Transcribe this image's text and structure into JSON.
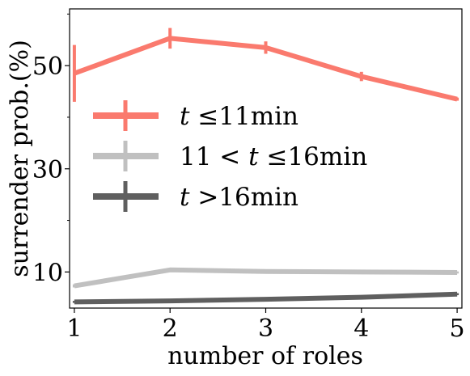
{
  "chart_data": {
    "type": "line",
    "xlabel": "number of roles",
    "ylabel": "surrender prob.(%)",
    "x": [
      1,
      2,
      3,
      4,
      5
    ],
    "x_tick_labels": [
      "1",
      "2",
      "3",
      "4",
      "5"
    ],
    "y_tick_values": [
      10,
      30,
      50
    ],
    "y_tick_labels": [
      "10",
      "30",
      "50"
    ],
    "xlim": [
      0.95,
      5.05
    ],
    "ylim": [
      3,
      61
    ],
    "grid": false,
    "legend_position": "center-left",
    "series": [
      {
        "name": "t ≤11min",
        "legend_parts": [
          "t",
          " ≤11min"
        ],
        "color": "#fa7a6e",
        "values": [
          48.5,
          55.3,
          53.5,
          47.9,
          43.5
        ],
        "error": [
          5.5,
          2.0,
          1.2,
          0.9,
          0.3
        ]
      },
      {
        "name": "11 < t ≤16min",
        "legend_parts": [
          "11 < ",
          "t",
          " ≤16min"
        ],
        "color": "#c0c0c0",
        "values": [
          7.3,
          10.4,
          10.1,
          10.0,
          9.9
        ],
        "error": [
          0.3,
          0.2,
          0.2,
          0.2,
          0.2
        ]
      },
      {
        "name": "t >16min",
        "legend_parts": [
          "t",
          " >16min"
        ],
        "color": "#5f5f5f",
        "values": [
          4.2,
          4.4,
          4.7,
          5.1,
          5.7
        ],
        "error": [
          0.2,
          0.2,
          0.2,
          0.2,
          0.2
        ]
      }
    ]
  }
}
